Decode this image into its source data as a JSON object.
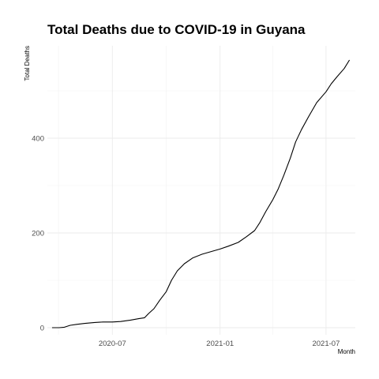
{
  "chart_data": {
    "type": "line",
    "title": "Total Deaths due to COVID-19 in Guyana",
    "xlabel": "Month",
    "ylabel": "Total Deaths",
    "grid": true,
    "xlim": [
      "2020-03-12",
      "2021-08-20"
    ],
    "ylim": [
      -15,
      595
    ],
    "x_ticks": [
      {
        "date": "2020-07-01",
        "label": "2020-07"
      },
      {
        "date": "2021-01-01",
        "label": "2021-01"
      },
      {
        "date": "2021-07-01",
        "label": "2021-07"
      }
    ],
    "y_ticks": [
      0,
      200,
      400
    ],
    "series": [
      {
        "color": "#000000",
        "x": [
          "2020-03-20",
          "2020-04-01",
          "2020-04-10",
          "2020-04-20",
          "2020-05-01",
          "2020-05-15",
          "2020-06-01",
          "2020-06-15",
          "2020-07-01",
          "2020-07-15",
          "2020-08-01",
          "2020-08-15",
          "2020-08-25",
          "2020-09-01",
          "2020-09-10",
          "2020-09-20",
          "2020-10-01",
          "2020-10-10",
          "2020-10-20",
          "2020-11-01",
          "2020-11-15",
          "2020-12-01",
          "2020-12-15",
          "2021-01-01",
          "2021-01-15",
          "2021-02-01",
          "2021-02-15",
          "2021-03-01",
          "2021-03-10",
          "2021-03-20",
          "2021-04-01",
          "2021-04-10",
          "2021-04-20",
          "2021-05-01",
          "2021-05-10",
          "2021-05-20",
          "2021-06-01",
          "2021-06-15",
          "2021-07-01",
          "2021-07-10",
          "2021-07-20",
          "2021-08-01",
          "2021-08-10"
        ],
        "y": [
          0,
          0,
          1,
          5,
          7,
          9,
          11,
          12,
          12,
          13,
          16,
          19,
          21,
          30,
          40,
          58,
          76,
          100,
          120,
          135,
          147,
          155,
          160,
          166,
          172,
          180,
          192,
          205,
          222,
          245,
          270,
          292,
          322,
          358,
          392,
          418,
          445,
          475,
          498,
          515,
          530,
          547,
          565
        ]
      }
    ]
  }
}
